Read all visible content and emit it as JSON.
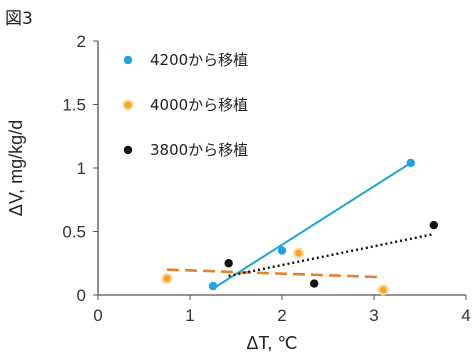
{
  "figure_label": "図3",
  "chart_data": {
    "type": "scatter",
    "xlabel": "ΔT, ℃",
    "ylabel": "ΔV, mg/kg/d",
    "xlim": [
      0,
      4
    ],
    "ylim": [
      0,
      2
    ],
    "xticks": [
      "0",
      "1",
      "2",
      "3",
      "4"
    ],
    "yticks": [
      "0",
      "0.5",
      "1",
      "1.5",
      "2"
    ],
    "grid": false,
    "legend_position": "top-left",
    "series": [
      {
        "name": "4200から移植",
        "color": "#1fa3dc",
        "marker": "circle",
        "points": [
          [
            1.25,
            0.07
          ],
          [
            2.0,
            0.35
          ],
          [
            3.4,
            1.04
          ]
        ],
        "trendline": {
          "style": "solid",
          "color": "#1fa3dc",
          "from": [
            1.25,
            0.05
          ],
          "to": [
            3.4,
            1.04
          ]
        }
      },
      {
        "name": "4000から移植",
        "color": "#f5a623",
        "marker": "circle-halo",
        "points": [
          [
            0.75,
            0.13
          ],
          [
            2.18,
            0.33
          ],
          [
            3.1,
            0.04
          ]
        ],
        "trendline": {
          "style": "dashed",
          "color": "#e8822a",
          "from": [
            0.75,
            0.2
          ],
          "to": [
            3.1,
            0.14
          ]
        }
      },
      {
        "name": "3800から移植",
        "color": "#111111",
        "marker": "circle",
        "points": [
          [
            1.42,
            0.25
          ],
          [
            2.35,
            0.09
          ],
          [
            3.65,
            0.55
          ]
        ],
        "trendline": {
          "style": "dotted",
          "color": "#111111",
          "from": [
            1.42,
            0.15
          ],
          "to": [
            3.65,
            0.48
          ]
        }
      }
    ]
  }
}
